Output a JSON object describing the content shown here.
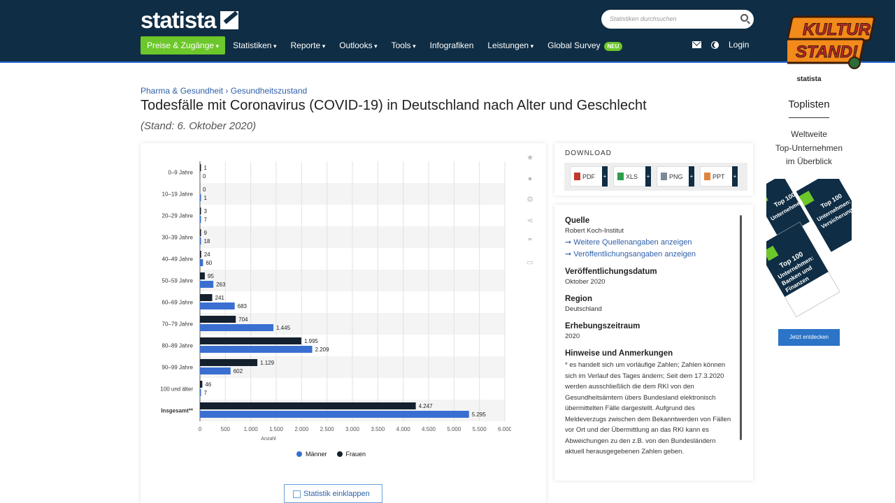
{
  "header": {
    "logo_text": "statista",
    "search_placeholder": "Statistiken durchsuchen",
    "nav": [
      {
        "label": "Preise & Zugänge",
        "dropdown": true
      },
      {
        "label": "Statistiken",
        "dropdown": true
      },
      {
        "label": "Reporte",
        "dropdown": true
      },
      {
        "label": "Outlooks",
        "dropdown": true
      },
      {
        "label": "Tools",
        "dropdown": true
      },
      {
        "label": "Infografiken",
        "dropdown": false
      },
      {
        "label": "Leistungen",
        "dropdown": true
      },
      {
        "label": "Global Survey",
        "dropdown": false
      }
    ],
    "new_badge": "NEU",
    "login_label": "Login",
    "colors": {
      "bar_bg": "#0f2d44",
      "accent_green": "#6cc72a"
    }
  },
  "overlay_logo": {
    "line1": "KULTUR",
    "line2": "STAND!"
  },
  "breadcrumb": {
    "item1": "Pharma & Gesundheit",
    "separator": "›",
    "item2": "Gesundheitszustand"
  },
  "page": {
    "title": "Todesfälle mit Coronavirus (COVID-19) in Deutschland nach Alter und Geschlecht",
    "subtitle": "(Stand: 6. Oktober 2020)"
  },
  "chart_data": {
    "type": "bar",
    "orientation": "horizontal",
    "categories": [
      "0–9 Jahre",
      "10–19 Jahre",
      "20–29 Jahre",
      "30–39 Jahre",
      "40–49 Jahre",
      "50–59 Jahre",
      "60–69 Jahre",
      "70–79 Jahre",
      "80–89 Jahre",
      "90–99 Jahre",
      "100 und älter",
      "Insgesamt**"
    ],
    "series": [
      {
        "name": "Frauen",
        "color": "#14202e",
        "values": [
          1,
          0,
          3,
          9,
          24,
          95,
          241,
          704,
          1995,
          1129,
          46,
          4247
        ],
        "labels": [
          "1",
          "0",
          "3",
          "9",
          "24",
          "95",
          "241",
          "704",
          "1.995",
          "1.129",
          "46",
          "4.247"
        ]
      },
      {
        "name": "Männer",
        "color": "#3a6fd1",
        "values": [
          0,
          1,
          7,
          18,
          60,
          263,
          683,
          1445,
          2209,
          602,
          7,
          5295
        ],
        "labels": [
          "0",
          "1",
          "7",
          "18",
          "60",
          "263",
          "683",
          "1.445",
          "2.209",
          "602",
          "7",
          "5.295"
        ]
      }
    ],
    "xlim": [
      0,
      6000
    ],
    "xticks": [
      "0",
      "500",
      "1.000",
      "1.500",
      "2.000",
      "2.500",
      "3.000",
      "3.500",
      "4.000",
      "4.500",
      "5.000",
      "5.500",
      "6.000"
    ],
    "xlabel": "Anzahl",
    "legend": [
      {
        "label": "Männer",
        "color": "#3a6fd1"
      },
      {
        "label": "Frauen",
        "color": "#14202e"
      }
    ],
    "legend_position": "bottom"
  },
  "collapse_button": "Statistik einklappen",
  "download": {
    "label": "DOWNLOAD",
    "buttons": [
      {
        "label": "PDF",
        "color": "#c0392b"
      },
      {
        "label": "XLS",
        "color": "#2e9e4b"
      },
      {
        "label": "PNG",
        "color": "#7a8a99"
      },
      {
        "label": "PPT",
        "color": "#e0853b"
      }
    ],
    "plus": "+"
  },
  "source": {
    "quelle_heading": "Quelle",
    "quelle_value": "Robert Koch-Institut",
    "link1": "➞ Weitere Quellenangaben anzeigen",
    "link2": "➞ Veröffentlichungsangaben anzeigen",
    "date_heading": "Veröffentlichungsdatum",
    "date_value": "Oktober 2020",
    "region_heading": "Region",
    "region_value": "Deutschland",
    "period_heading": "Erhebungszeitraum",
    "period_value": "2020",
    "notes_heading": "Hinweise und Anmerkungen",
    "notes_text": "* es handelt sich um vorläufige Zahlen; Zahlen können sich im Verlauf des Tages ändern; Seit dem 17.3.2020 werden ausschließlich die dem RKI von den Gesundheitsämtern übers Bundesland elektronisch übermittelten Fälle dargestellt. Aufgrund des Meldeverzugs zwischen dem Bekanntwerden von Fällen vor Ort und der Übermittlung an das RKI kann es Abweichungen zu den z.B. von den Bundesländern aktuell herausgegebenen Zahlen geben."
  },
  "ad": {
    "brand": "statista",
    "heading": "Toplisten",
    "desc_line1": "Weltweite",
    "desc_line2": "Top-Unternehmen",
    "desc_line3": "im Überblick",
    "book1_line1": "Top 100",
    "book1_line2": "Unternehmen:",
    "book1_line3": "Banken und",
    "book1_line4": "Finanzen",
    "book2_line1": "Top 100",
    "book2_line2": "Unternehmen:",
    "book2_line3": "Versicherungen",
    "book3_line1": "Top 100",
    "book3_line2": "Unternehmen",
    "cta": "Jetzt entdecken"
  }
}
